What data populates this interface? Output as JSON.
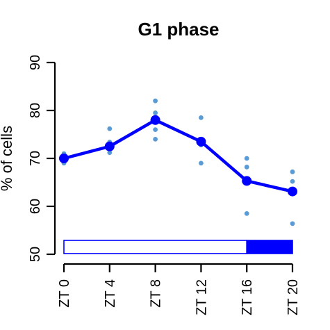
{
  "chart_data": {
    "type": "line",
    "title": "G1 phase",
    "xlabel": "",
    "ylabel": "% of cells",
    "categories": [
      "ZT 0",
      "ZT 4",
      "ZT 8",
      "ZT 12",
      "ZT 16",
      "ZT 20"
    ],
    "x": [
      0,
      4,
      8,
      12,
      16,
      20
    ],
    "ylim": [
      50,
      90
    ],
    "yticks": [
      50,
      60,
      70,
      80,
      90
    ],
    "grid": false,
    "series": [
      {
        "values": [
          70.0,
          72.5,
          78.0,
          73.5,
          65.3,
          63.1
        ]
      }
    ],
    "replicates": [
      [
        71.0,
        70.5,
        69.5,
        69.0,
        70.2
      ],
      [
        76.2,
        73.0,
        72.0,
        71.2,
        73.4
      ],
      [
        82.0,
        79.5,
        77.5,
        76.0,
        74.0
      ],
      [
        78.5,
        73.5,
        72.8,
        69.0,
        73.8
      ],
      [
        70.0,
        68.2,
        65.0,
        64.8,
        58.5
      ],
      [
        67.2,
        65.2,
        63.5,
        62.8,
        56.4
      ]
    ],
    "light_dark_bar": {
      "light": [
        0,
        16
      ],
      "dark": [
        16,
        20
      ]
    },
    "colors": {
      "line": "#0000ff",
      "replicate": "#5b9bd5",
      "dark_phase": "#0000ff",
      "light_phase": "#ffffff",
      "axis": "#000000"
    }
  }
}
